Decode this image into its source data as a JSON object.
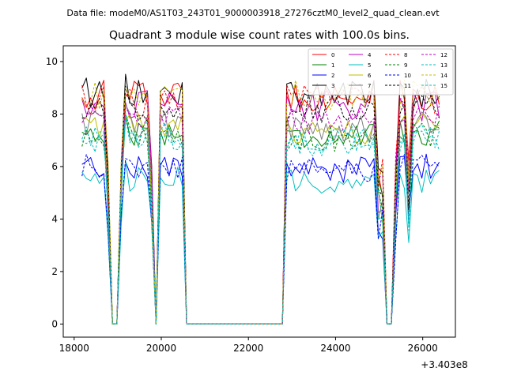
{
  "suptitle": "Data file: modeM0/AS1T03_243T01_9000003918_27276cztM0_level2_quad_clean.evt",
  "chart_data": {
    "type": "line",
    "title": "Quadrant 3 module wise count rates with 100.0s bins.",
    "xlabel": "",
    "ylabel": "",
    "x_offset_label": "+3.403e8",
    "xlim": [
      17750,
      26750
    ],
    "ylim": [
      -0.5,
      10.6
    ],
    "xticks": [
      18000,
      20000,
      22000,
      24000,
      26000
    ],
    "xtick_labels": [
      "18000",
      "20000",
      "22000",
      "24000",
      "26000"
    ],
    "yticks": [
      0,
      2,
      4,
      6,
      8,
      10
    ],
    "ytick_labels": [
      "0",
      "2",
      "4",
      "6",
      "8",
      "10"
    ],
    "legend_position": "top-right",
    "segments": [
      {
        "x_start": 18180,
        "x_end": 18780,
        "n": 7
      },
      {
        "x_start": 18880,
        "x_end": 18980,
        "n": 2
      },
      {
        "x_start": 19080,
        "x_end": 19780,
        "n": 8
      },
      {
        "x_start": 19880,
        "x_end": 20480,
        "n": 7
      },
      {
        "x_start": 20580,
        "x_end": 22780,
        "n": 23,
        "zero": true
      },
      {
        "x_start": 22880,
        "x_end": 25080,
        "n": 23
      },
      {
        "x_start": 25180,
        "x_end": 25280,
        "n": 2,
        "zero": true
      },
      {
        "x_start": 25380,
        "x_end": 26380,
        "n": 11
      }
    ],
    "dip_x": [
      18880,
      18980,
      19880,
      25180,
      25280
    ],
    "low_x": [
      18780,
      19080,
      19780,
      24980,
      25080,
      25380,
      25680
    ],
    "series": [
      {
        "name": "0",
        "color": "#ff0000",
        "dash": false,
        "base": 8.7,
        "high": true
      },
      {
        "name": "1",
        "color": "#008000",
        "dash": false,
        "base": 7.3,
        "high": false
      },
      {
        "name": "2",
        "color": "#0000ff",
        "dash": false,
        "base": 6.0,
        "high": false
      },
      {
        "name": "3",
        "color": "#000000",
        "dash": false,
        "base": 8.8,
        "high": true
      },
      {
        "name": "4",
        "color": "#c000c0",
        "dash": false,
        "base": 8.3,
        "high": true
      },
      {
        "name": "5",
        "color": "#00bfbf",
        "dash": false,
        "base": 5.5,
        "high": false
      },
      {
        "name": "6",
        "color": "#bfbf00",
        "dash": false,
        "base": 7.5,
        "high": false
      },
      {
        "name": "7",
        "color": "#808080",
        "dash": false,
        "base": 7.6,
        "high": false
      },
      {
        "name": "8",
        "color": "#ff0000",
        "dash": true,
        "base": 8.5,
        "high": true
      },
      {
        "name": "9",
        "color": "#008000",
        "dash": true,
        "base": 7.2,
        "high": false
      },
      {
        "name": "10",
        "color": "#0000ff",
        "dash": true,
        "base": 6.0,
        "high": false
      },
      {
        "name": "11",
        "color": "#000000",
        "dash": true,
        "base": 8.2,
        "high": true
      },
      {
        "name": "12",
        "color": "#c000c0",
        "dash": true,
        "base": 7.9,
        "high": false
      },
      {
        "name": "13",
        "color": "#00bfbf",
        "dash": true,
        "base": 7.2,
        "high": false
      },
      {
        "name": "14",
        "color": "#bfbf00",
        "dash": true,
        "base": 8.7,
        "high": true
      },
      {
        "name": "15",
        "color": "#00bfbf",
        "dash": true,
        "base": 7.0,
        "high": false
      }
    ]
  }
}
